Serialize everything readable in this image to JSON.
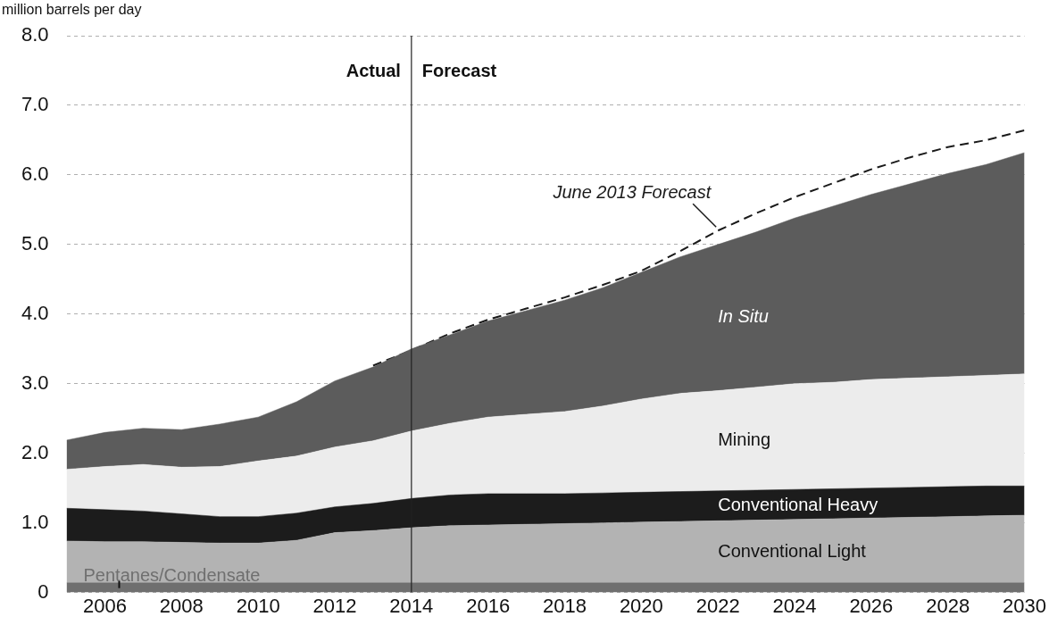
{
  "chart_data": {
    "type": "area",
    "stacked": true,
    "ylabel": "million barrels per day",
    "x": [
      2005,
      2006,
      2007,
      2008,
      2009,
      2010,
      2011,
      2012,
      2013,
      2014,
      2015,
      2016,
      2017,
      2018,
      2019,
      2020,
      2021,
      2022,
      2023,
      2024,
      2025,
      2026,
      2027,
      2028,
      2029,
      2030
    ],
    "xlim": [
      2005,
      2030
    ],
    "xticks": [
      2006,
      2008,
      2010,
      2012,
      2014,
      2016,
      2018,
      2020,
      2022,
      2024,
      2026,
      2028,
      2030
    ],
    "ylim": [
      0,
      8
    ],
    "yticks": [
      {
        "value": 0,
        "label": "0"
      },
      {
        "value": 1,
        "label": "1.0"
      },
      {
        "value": 2,
        "label": "2.0"
      },
      {
        "value": 3,
        "label": "3.0"
      },
      {
        "value": 4,
        "label": "4.0"
      },
      {
        "value": 5,
        "label": "5.0"
      },
      {
        "value": 6,
        "label": "6.0"
      },
      {
        "value": 7,
        "label": "7.0"
      },
      {
        "value": 8,
        "label": "8.0"
      }
    ],
    "grid": "y",
    "legend": false,
    "series": [
      {
        "name": "Pentanes/Condensate",
        "color": "#6f6f6f",
        "values": [
          0.14,
          0.14,
          0.14,
          0.14,
          0.14,
          0.14,
          0.14,
          0.14,
          0.14,
          0.14,
          0.14,
          0.14,
          0.14,
          0.14,
          0.14,
          0.14,
          0.14,
          0.14,
          0.14,
          0.14,
          0.14,
          0.14,
          0.14,
          0.14,
          0.14,
          0.14
        ]
      },
      {
        "name": "Conventional Light",
        "color": "#b3b3b3",
        "values": [
          0.6,
          0.59,
          0.59,
          0.58,
          0.57,
          0.57,
          0.61,
          0.72,
          0.75,
          0.79,
          0.82,
          0.83,
          0.84,
          0.85,
          0.86,
          0.87,
          0.88,
          0.89,
          0.9,
          0.91,
          0.92,
          0.93,
          0.94,
          0.95,
          0.96,
          0.97
        ]
      },
      {
        "name": "Conventional Heavy",
        "color": "#1c1c1c",
        "values": [
          0.47,
          0.46,
          0.44,
          0.41,
          0.38,
          0.38,
          0.39,
          0.37,
          0.39,
          0.42,
          0.44,
          0.45,
          0.44,
          0.43,
          0.43,
          0.43,
          0.43,
          0.43,
          0.43,
          0.43,
          0.43,
          0.43,
          0.43,
          0.43,
          0.43,
          0.42
        ]
      },
      {
        "name": "Mining",
        "color": "#ececec",
        "values": [
          0.56,
          0.62,
          0.67,
          0.67,
          0.72,
          0.8,
          0.82,
          0.86,
          0.9,
          0.97,
          1.03,
          1.1,
          1.14,
          1.18,
          1.25,
          1.34,
          1.41,
          1.44,
          1.48,
          1.52,
          1.53,
          1.56,
          1.57,
          1.58,
          1.59,
          1.61
        ]
      },
      {
        "name": "In Situ",
        "color": "#5c5c5c",
        "values": [
          0.42,
          0.49,
          0.52,
          0.54,
          0.61,
          0.63,
          0.78,
          0.95,
          1.06,
          1.18,
          1.27,
          1.38,
          1.49,
          1.6,
          1.7,
          1.82,
          1.96,
          2.1,
          2.23,
          2.38,
          2.53,
          2.66,
          2.79,
          2.92,
          3.03,
          3.18
        ]
      },
      {
        "name": "June 2013 Forecast",
        "type": "line",
        "line_style": "dashed",
        "color": "#1a1a1a",
        "x": [
          2013,
          2014,
          2015,
          2016,
          2017,
          2018,
          2019,
          2020,
          2021,
          2022,
          2023,
          2024,
          2025,
          2026,
          2027,
          2028,
          2029,
          2030
        ],
        "values": [
          3.26,
          3.48,
          3.72,
          3.92,
          4.08,
          4.24,
          4.42,
          4.62,
          4.9,
          5.2,
          5.45,
          5.68,
          5.88,
          6.08,
          6.25,
          6.4,
          6.5,
          6.64
        ]
      }
    ],
    "ref_lines": [
      {
        "axis": "x",
        "value": 2014,
        "color": "#222222"
      }
    ],
    "annotations": [
      "Actual",
      "Forecast"
    ]
  }
}
